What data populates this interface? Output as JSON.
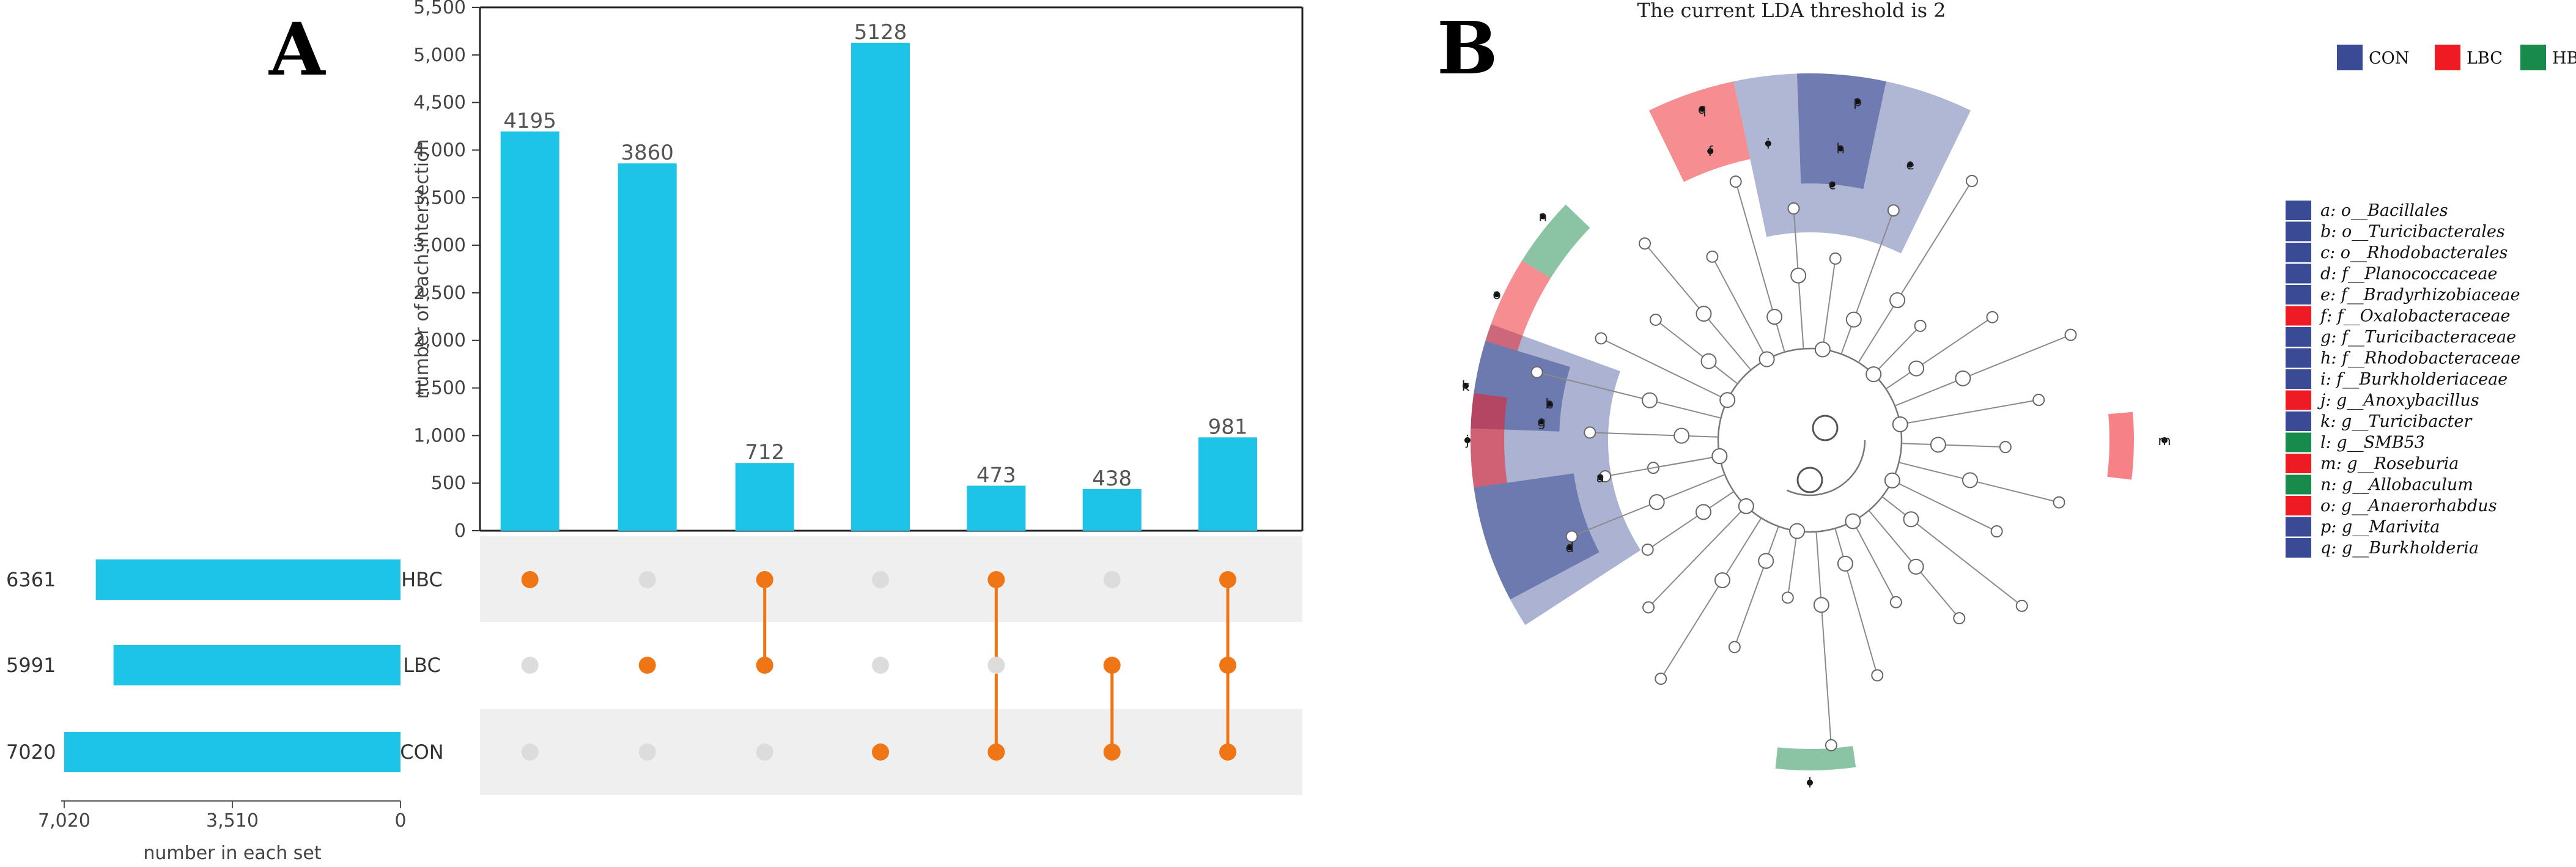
{
  "panel_a": {
    "letter": "A",
    "chart_data": {
      "type": "bar",
      "title": "",
      "ylabel": "number of each intersection",
      "ylim": [
        0,
        5500
      ],
      "yticks": [
        0,
        500,
        1000,
        1500,
        2000,
        2500,
        3000,
        3500,
        4000,
        4500,
        5000,
        5500
      ],
      "ytick_labels": [
        "0",
        "500",
        "1,000",
        "1,500",
        "2,000",
        "2,500",
        "3,000",
        "3,500",
        "4,000",
        "4,500",
        "5,000",
        "5,500"
      ],
      "values": [
        4195,
        3860,
        712,
        5128,
        473,
        438,
        981
      ],
      "value_labels": [
        "4195",
        "3860",
        "712",
        "5128",
        "473",
        "438",
        "981"
      ],
      "bar_color": "#1ec4e8",
      "dot_on_color": "#f07515",
      "dot_off_color": "#dcdcdc",
      "sets": [
        "HBC",
        "LBC",
        "CON"
      ],
      "membership": [
        [
          1,
          0,
          0
        ],
        [
          0,
          1,
          0
        ],
        [
          1,
          1,
          0
        ],
        [
          0,
          0,
          1
        ],
        [
          1,
          0,
          1
        ],
        [
          0,
          1,
          1
        ],
        [
          1,
          1,
          1
        ]
      ],
      "set_sizes": [
        6361,
        5991,
        7020
      ],
      "set_size_labels": [
        "6361",
        "5991",
        "7020"
      ],
      "set_xlabel": "number in each set",
      "set_xlim": [
        0,
        7020
      ],
      "set_xtick_labels": [
        "7,020",
        "3,510",
        "0"
      ]
    }
  },
  "panel_b": {
    "letter": "B",
    "title": "The current LDA threshold is 2",
    "groups": [
      {
        "name": "CON",
        "color": "#3a4a94"
      },
      {
        "name": "LBC",
        "color": "#ee1b24"
      },
      {
        "name": "HBC",
        "color": "#178a4c"
      }
    ],
    "taxa": [
      {
        "label": "a: o__Bacillales",
        "group": "CON"
      },
      {
        "label": "b: o__Turicibacterales",
        "group": "CON"
      },
      {
        "label": "c: o__Rhodobacterales",
        "group": "CON"
      },
      {
        "label": "d: f__Planococcaceae",
        "group": "CON"
      },
      {
        "label": "e: f__Bradyrhizobiaceae",
        "group": "CON"
      },
      {
        "label": "f: f__Oxalobacteraceae",
        "group": "LBC"
      },
      {
        "label": "g: f__Turicibacteraceae",
        "group": "CON"
      },
      {
        "label": "h: f__Rhodobacteraceae",
        "group": "CON"
      },
      {
        "label": "i: f__Burkholderiaceae",
        "group": "CON"
      },
      {
        "label": "j: g__Anoxybacillus",
        "group": "LBC"
      },
      {
        "label": "k: g__Turicibacter",
        "group": "CON"
      },
      {
        "label": "l: g__SMB53",
        "group": "HBC"
      },
      {
        "label": "m: g__Roseburia",
        "group": "LBC"
      },
      {
        "label": "n: g__Allobaculum",
        "group": "HBC"
      },
      {
        "label": "o: g__Anaerorhabdus",
        "group": "LBC"
      },
      {
        "label": "p: g__Marivita",
        "group": "CON"
      },
      {
        "label": "q: g__Burkholderia",
        "group": "CON"
      }
    ],
    "node_letters": [
      "a",
      "b",
      "c",
      "d",
      "e",
      "f",
      "g",
      "h",
      "i",
      "j",
      "k",
      "l",
      "m",
      "n",
      "o",
      "p",
      "q"
    ]
  }
}
